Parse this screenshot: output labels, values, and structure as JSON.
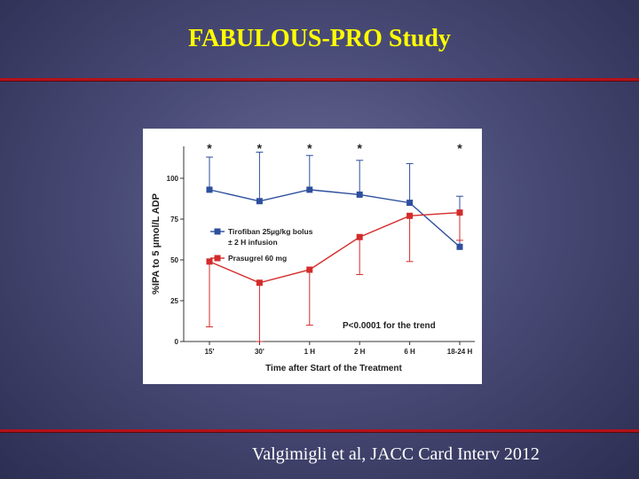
{
  "slide": {
    "title": "FABULOUS-PRO Study",
    "citation": "Valgimigli et al, JACC Card Interv 2012",
    "title_color": "#ffff00",
    "rule_color": "#b3121a"
  },
  "chart_data": {
    "type": "line",
    "categories": [
      "15'",
      "30'",
      "1 H",
      "2 H",
      "6 H",
      "18-24 H"
    ],
    "series": [
      {
        "name": "Tirofiban 25µg/kg bolus ± 2 H infusion",
        "legend_lines": [
          "Tirofiban 25µg/kg bolus",
          "± 2 H infusion"
        ],
        "color": "#2e4f9e",
        "values": [
          93,
          86,
          93,
          90,
          85,
          58
        ],
        "error_up": [
          20,
          30,
          21,
          21,
          24,
          31
        ],
        "error_down": [
          0,
          0,
          0,
          0,
          0,
          0
        ]
      },
      {
        "name": "Prasugrel 60 mg",
        "legend_lines": [
          "Prasugrel 60 mg"
        ],
        "color": "#d42b2b",
        "values": [
          49,
          36,
          44,
          64,
          77,
          79
        ],
        "error_up": [
          0,
          0,
          0,
          0,
          0,
          0
        ],
        "error_down": [
          40,
          36,
          34,
          23,
          28,
          17
        ]
      }
    ],
    "significance_marks": [
      "*",
      "*",
      "*",
      "*",
      "",
      "*"
    ],
    "ylabel": "%IPA to 5 µmol/L ADP",
    "xlabel": "Time after Start of the Treatment",
    "yticks": [
      0,
      25,
      50,
      75,
      100
    ],
    "ylim": [
      0,
      125
    ],
    "annotation": "P<0.0001 for the trend",
    "legend_position": "center-left",
    "grid": false
  }
}
